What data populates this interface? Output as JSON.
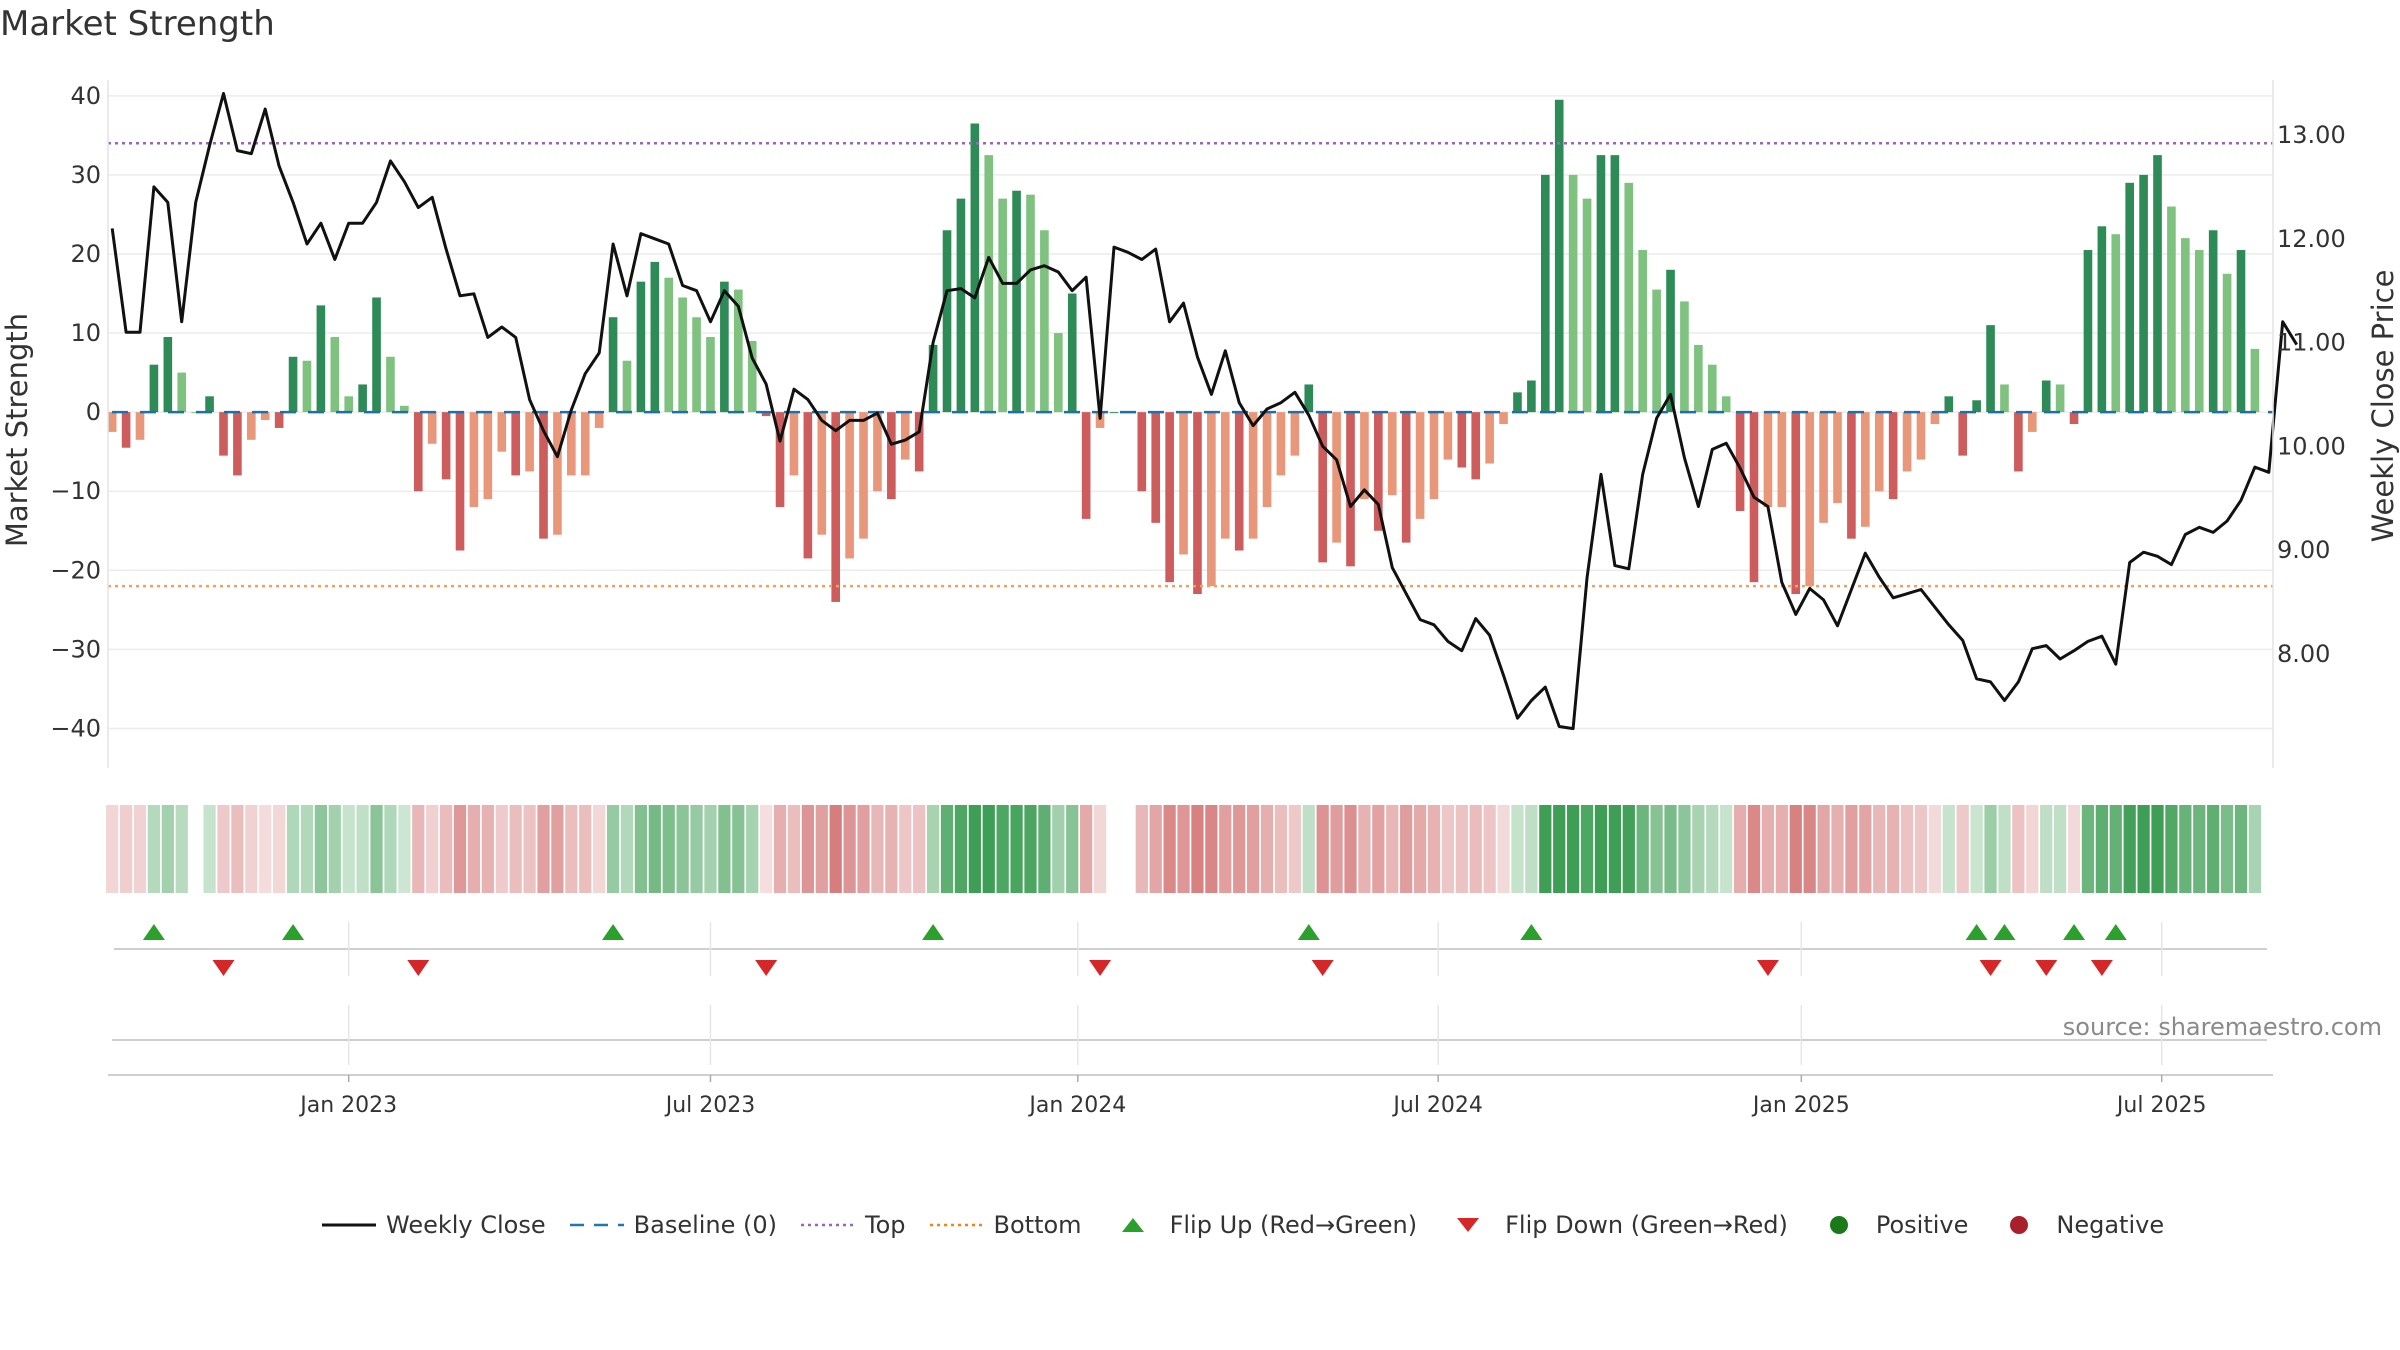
{
  "chart_data": {
    "type": "bar+line",
    "title": "Market Strength",
    "ylabel_left": "Market Strength",
    "ylabel_right": "Weekly Close Price",
    "left_axis": {
      "ylim": [
        -45,
        42
      ],
      "ticks": [
        40,
        30,
        20,
        10,
        0,
        -10,
        -20,
        -30,
        -40
      ],
      "tick_labels": [
        "40",
        "30",
        "20",
        "10",
        "0",
        "−10",
        "−20",
        "−30",
        "−40"
      ]
    },
    "right_axis": {
      "ylim": [
        6.9,
        13.53
      ],
      "ticks": [
        13,
        12,
        11,
        10,
        9,
        8
      ],
      "tick_labels": [
        "13.00",
        "12.00",
        "11.00",
        "10.00",
        "9.00",
        "8.00"
      ]
    },
    "x_axis": {
      "start": "2022-09-04",
      "weeks": 156,
      "tick_labels": [
        "Jan 2023",
        "Jul 2023",
        "Jan 2024",
        "Jul 2024",
        "Jan 2025",
        "Jul 2025"
      ],
      "tick_weeks": [
        17,
        43,
        69.4,
        95.3,
        121.4,
        147.3
      ]
    },
    "top_line": 34,
    "bottom_line": -22,
    "strength": [
      -2.5,
      -4.5,
      -3.5,
      6,
      9.5,
      5,
      0,
      2,
      -5.5,
      -8,
      -3.5,
      -1,
      -2,
      7,
      6.5,
      13.5,
      9.5,
      2,
      3.5,
      14.5,
      7,
      0.8,
      -10,
      -4,
      -8.5,
      -17.5,
      -12,
      -11,
      -5,
      -8,
      -7.5,
      -16,
      -15.5,
      -8,
      -8,
      -2,
      12,
      6.5,
      16.5,
      19,
      17,
      14.5,
      12,
      9.5,
      16.5,
      15.5,
      9,
      -0.5,
      -12,
      -8,
      -18.5,
      -15.5,
      -24,
      -18.5,
      -16,
      -10,
      -11,
      -6,
      -7.5,
      8.5,
      23,
      27,
      36.5,
      32.5,
      27,
      28,
      27.5,
      23,
      10,
      15,
      -13.5,
      -2,
      0,
      0,
      -10,
      -14,
      -21.5,
      -18,
      -23,
      -22,
      -16,
      -17.5,
      -16,
      -12,
      -8,
      -5.5,
      3.5,
      -19,
      -16.5,
      -19.5,
      -11,
      -15,
      -10.5,
      -16.5,
      -13.5,
      -11,
      -6,
      -7,
      -8.5,
      -6.5,
      -1.5,
      2.5,
      4,
      30,
      39.5,
      30,
      27,
      32.5,
      32.5,
      29,
      20.5,
      15.5,
      18,
      14,
      8.5,
      6,
      2,
      -12.5,
      -21.5,
      -12,
      -12,
      -23,
      -22,
      -14,
      -11.5,
      -16,
      -14.5,
      -10,
      -11,
      -7.5,
      -6,
      -1.5,
      2,
      -5.5,
      1.5,
      11,
      3.5,
      -7.5,
      -2.5,
      4,
      3.5,
      -1.5,
      20.5,
      23.5,
      22.5,
      29,
      30,
      32.5,
      26,
      22,
      20.5,
      23,
      17.5,
      20.5,
      8
    ],
    "weekly_close": [
      12.1,
      11.1,
      11.1,
      12.5,
      12.35,
      11.2,
      12.35,
      12.9,
      13.4,
      12.85,
      12.82,
      13.25,
      12.7,
      12.35,
      11.95,
      12.15,
      11.8,
      12.15,
      12.15,
      12.35,
      12.75,
      12.55,
      12.3,
      12.4,
      11.9,
      11.45,
      11.47,
      11.05,
      11.15,
      11.05,
      10.45,
      10.15,
      9.9,
      10.35,
      10.7,
      10.9,
      11.95,
      11.45,
      12.05,
      12.0,
      11.95,
      11.55,
      11.5,
      11.2,
      11.5,
      11.35,
      10.85,
      10.6,
      10.05,
      10.55,
      10.45,
      10.25,
      10.15,
      10.25,
      10.25,
      10.32,
      10.02,
      10.06,
      10.14,
      11.0,
      11.5,
      11.52,
      11.43,
      11.82,
      11.57,
      11.57,
      11.7,
      11.74,
      11.68,
      11.5,
      11.63,
      10.27,
      11.92,
      11.87,
      11.8,
      11.9,
      11.2,
      11.38,
      10.86,
      10.5,
      10.92,
      10.42,
      10.2,
      10.36,
      10.42,
      10.52,
      10.3,
      10.0,
      9.87,
      9.42,
      9.58,
      9.44,
      8.83,
      8.58,
      8.33,
      8.28,
      8.12,
      8.03,
      8.34,
      8.18,
      7.79,
      7.38,
      7.55,
      7.68,
      7.3,
      7.28,
      8.73,
      9.73,
      8.85,
      8.82,
      9.73,
      10.27,
      10.5,
      9.89,
      9.42,
      9.97,
      10.03,
      9.79,
      9.51,
      9.42,
      8.69,
      8.38,
      8.63,
      8.52,
      8.27,
      8.62,
      8.97,
      8.74,
      8.54,
      8.58,
      8.62,
      8.45,
      8.28,
      8.13,
      7.76,
      7.73,
      7.55,
      7.73,
      8.05,
      8.08,
      7.95,
      8.03,
      8.12,
      8.17,
      7.9,
      8.88,
      8.98,
      8.94,
      8.86,
      9.15,
      9.22,
      9.17,
      9.28,
      9.48,
      9.8,
      9.75,
      11.2,
      10.98
    ],
    "strip_series": [
      {
        "name": "Positive",
        "color": "#2e8b3e"
      },
      {
        "name": "Negative",
        "color": "#b2232a"
      }
    ],
    "flip_up_weeks": [
      3,
      13,
      36,
      59,
      86,
      102,
      134,
      136,
      141,
      144
    ],
    "flip_down_weeks": [
      8,
      22,
      47,
      71,
      87,
      119,
      135,
      139,
      143
    ],
    "legend": [
      {
        "label": "Weekly Close",
        "symbol": "line",
        "color": "#111111"
      },
      {
        "label": "Baseline (0)",
        "symbol": "dash",
        "color": "#1f77b4"
      },
      {
        "label": "Top",
        "symbol": "dot",
        "color": "#9467bd"
      },
      {
        "label": "Bottom",
        "symbol": "dot",
        "color": "#ff7f0e"
      },
      {
        "label": "Flip Up (Red→Green)",
        "symbol": "tri-up",
        "color": "#2ca02c"
      },
      {
        "label": "Flip Down (Green→Red)",
        "symbol": "tri-down",
        "color": "#d62728"
      },
      {
        "label": "Positive",
        "symbol": "dot-big",
        "color": "#1a7a1a"
      },
      {
        "label": "Negative",
        "symbol": "dot-big",
        "color": "#a8202a"
      }
    ],
    "source": "source: sharemaestro.com"
  }
}
